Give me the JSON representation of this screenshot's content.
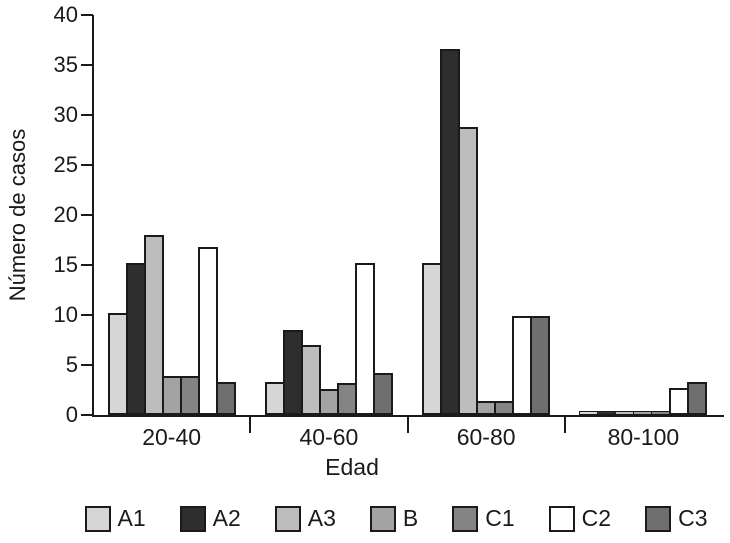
{
  "chart_data": {
    "type": "bar",
    "title": "",
    "xlabel": "Edad",
    "ylabel": "Número de casos",
    "ylim": [
      0,
      40
    ],
    "yticks": [
      0,
      5,
      10,
      15,
      20,
      25,
      30,
      35,
      40
    ],
    "categories": [
      "20-40",
      "40-60",
      "60-80",
      "80-100"
    ],
    "series": [
      {
        "name": "A1",
        "color": "#d6d6d6",
        "values": [
          10.2,
          3.3,
          15.2,
          0.4
        ]
      },
      {
        "name": "A2",
        "color": "#2e2e2e",
        "values": [
          15.2,
          8.5,
          36.6,
          0.4
        ]
      },
      {
        "name": "A3",
        "color": "#bdbdbd",
        "values": [
          18.0,
          7.0,
          28.8,
          0.4
        ]
      },
      {
        "name": "B",
        "color": "#a3a3a3",
        "values": [
          3.9,
          2.6,
          1.4,
          0.4
        ]
      },
      {
        "name": "C1",
        "color": "#848484",
        "values": [
          3.9,
          3.2,
          1.4,
          0.4
        ]
      },
      {
        "name": "C2",
        "color": "#ffffff",
        "values": [
          16.8,
          15.2,
          9.9,
          2.7
        ]
      },
      {
        "name": "C3",
        "color": "#6f6f6f",
        "values": [
          3.3,
          4.2,
          9.9,
          3.3
        ]
      }
    ],
    "legend_position": "bottom",
    "grid": false,
    "axis_color": "#1a1a1a"
  }
}
